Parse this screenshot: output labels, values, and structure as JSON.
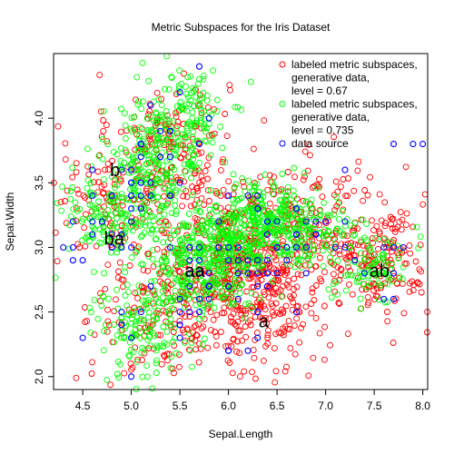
{
  "chart_data": {
    "type": "scatter",
    "title": "Metric Subspaces for the Iris Dataset",
    "xlabel": "Sepal.Length",
    "ylabel": "Sepal.Width",
    "xlim": [
      4.2,
      8.05
    ],
    "ylim": [
      1.9,
      4.5
    ],
    "xticks": [
      "4.5",
      "5.0",
      "5.5",
      "6.0",
      "6.5",
      "7.0",
      "7.5",
      "8.0"
    ],
    "yticks": [
      "2.0",
      "2.5",
      "3.0",
      "3.5",
      "4.0"
    ],
    "legend_position": "top-right",
    "legend": [
      {
        "lines": [
          "labeled metric subspaces,",
          "generative data,",
          "level = 0.67"
        ],
        "color": "#ff0000"
      },
      {
        "lines": [
          "labeled metric subspaces,",
          "generative data,",
          "level = 0.735"
        ],
        "color": "#00ff00"
      },
      {
        "lines": [
          "data source"
        ],
        "color": "#0000ff"
      }
    ],
    "cluster_labels": [
      {
        "text": "b",
        "x": 4.78,
        "y": 3.55
      },
      {
        "text": "ba",
        "x": 4.72,
        "y": 3.02
      },
      {
        "text": "aa",
        "x": 5.55,
        "y": 2.77
      },
      {
        "text": "a",
        "x": 6.31,
        "y": 2.38
      },
      {
        "text": "ab",
        "x": 7.45,
        "y": 2.77
      }
    ],
    "series": [
      {
        "name": "labeled metric subspaces, generative data, level = 0.67",
        "color": "#ff0000",
        "regions": [
          {
            "cx": 5.4,
            "cy": 3.75,
            "sx": 0.3,
            "sy": 0.3,
            "n": 180
          },
          {
            "cx": 6.0,
            "cy": 2.85,
            "sx": 0.45,
            "sy": 0.3,
            "n": 320
          },
          {
            "cx": 6.35,
            "cy": 2.6,
            "sx": 0.3,
            "sy": 0.3,
            "n": 180
          },
          {
            "cx": 6.9,
            "cy": 3.15,
            "sx": 0.5,
            "sy": 0.25,
            "n": 260
          },
          {
            "cx": 7.6,
            "cy": 2.8,
            "sx": 0.25,
            "sy": 0.2,
            "n": 120
          },
          {
            "cx": 5.3,
            "cy": 2.5,
            "sx": 0.35,
            "sy": 0.3,
            "n": 150
          },
          {
            "cx": 4.75,
            "cy": 3.4,
            "sx": 0.3,
            "sy": 0.25,
            "n": 90
          }
        ]
      },
      {
        "name": "labeled metric subspaces, generative data, level = 0.735",
        "color": "#00ff00",
        "regions": [
          {
            "cx": 5.2,
            "cy": 3.55,
            "sx": 0.25,
            "sy": 0.28,
            "n": 260
          },
          {
            "cx": 5.6,
            "cy": 4.0,
            "sx": 0.2,
            "sy": 0.2,
            "n": 120
          },
          {
            "cx": 4.7,
            "cy": 3.25,
            "sx": 0.25,
            "sy": 0.2,
            "n": 110
          },
          {
            "cx": 5.75,
            "cy": 2.85,
            "sx": 0.3,
            "sy": 0.2,
            "n": 300
          },
          {
            "cx": 6.6,
            "cy": 3.15,
            "sx": 0.35,
            "sy": 0.15,
            "n": 260
          },
          {
            "cx": 6.2,
            "cy": 3.2,
            "sx": 0.25,
            "sy": 0.15,
            "n": 160
          },
          {
            "cx": 7.5,
            "cy": 2.85,
            "sx": 0.2,
            "sy": 0.15,
            "n": 90
          },
          {
            "cx": 5.1,
            "cy": 2.4,
            "sx": 0.25,
            "sy": 0.22,
            "n": 140
          }
        ]
      },
      {
        "name": "data source",
        "color": "#0000ff",
        "points": [
          [
            5.1,
            3.5
          ],
          [
            4.9,
            3.0
          ],
          [
            4.7,
            3.2
          ],
          [
            4.6,
            3.1
          ],
          [
            5.0,
            3.6
          ],
          [
            5.4,
            3.9
          ],
          [
            4.6,
            3.4
          ],
          [
            5.0,
            3.4
          ],
          [
            4.4,
            2.9
          ],
          [
            4.9,
            3.1
          ],
          [
            5.4,
            3.7
          ],
          [
            4.8,
            3.4
          ],
          [
            4.8,
            3.0
          ],
          [
            4.3,
            3.0
          ],
          [
            5.8,
            4.0
          ],
          [
            5.7,
            4.4
          ],
          [
            5.4,
            3.9
          ],
          [
            5.1,
            3.5
          ],
          [
            5.7,
            3.8
          ],
          [
            5.1,
            3.8
          ],
          [
            5.4,
            3.4
          ],
          [
            5.1,
            3.7
          ],
          [
            4.6,
            3.6
          ],
          [
            5.1,
            3.3
          ],
          [
            4.8,
            3.4
          ],
          [
            5.0,
            3.0
          ],
          [
            5.0,
            3.4
          ],
          [
            5.2,
            3.5
          ],
          [
            5.2,
            3.4
          ],
          [
            4.7,
            3.2
          ],
          [
            4.8,
            3.1
          ],
          [
            5.4,
            3.4
          ],
          [
            5.2,
            4.1
          ],
          [
            5.5,
            4.2
          ],
          [
            4.9,
            3.1
          ],
          [
            5.0,
            3.2
          ],
          [
            5.5,
            3.5
          ],
          [
            4.9,
            3.6
          ],
          [
            4.4,
            3.0
          ],
          [
            5.1,
            3.4
          ],
          [
            5.0,
            3.5
          ],
          [
            4.5,
            2.3
          ],
          [
            4.4,
            3.2
          ],
          [
            5.0,
            3.5
          ],
          [
            5.1,
            3.8
          ],
          [
            4.8,
            3.0
          ],
          [
            5.1,
            3.8
          ],
          [
            4.6,
            3.2
          ],
          [
            5.3,
            3.7
          ],
          [
            5.0,
            3.3
          ],
          [
            7.0,
            3.2
          ],
          [
            6.4,
            3.2
          ],
          [
            6.9,
            3.1
          ],
          [
            5.5,
            2.3
          ],
          [
            6.5,
            2.8
          ],
          [
            5.7,
            2.8
          ],
          [
            6.3,
            3.3
          ],
          [
            4.9,
            2.4
          ],
          [
            6.6,
            2.9
          ],
          [
            5.2,
            2.7
          ],
          [
            5.0,
            2.0
          ],
          [
            5.9,
            3.0
          ],
          [
            6.0,
            2.2
          ],
          [
            6.1,
            2.9
          ],
          [
            5.6,
            2.9
          ],
          [
            6.7,
            3.1
          ],
          [
            5.6,
            3.0
          ],
          [
            5.8,
            2.7
          ],
          [
            6.2,
            2.2
          ],
          [
            5.6,
            2.5
          ],
          [
            5.9,
            3.2
          ],
          [
            6.1,
            2.8
          ],
          [
            6.3,
            2.5
          ],
          [
            6.1,
            2.8
          ],
          [
            6.4,
            2.9
          ],
          [
            6.6,
            3.0
          ],
          [
            6.8,
            2.8
          ],
          [
            6.7,
            3.0
          ],
          [
            6.0,
            2.9
          ],
          [
            5.7,
            2.6
          ],
          [
            5.5,
            2.4
          ],
          [
            5.5,
            2.4
          ],
          [
            5.8,
            2.7
          ],
          [
            6.0,
            2.7
          ],
          [
            5.4,
            3.0
          ],
          [
            6.0,
            3.4
          ],
          [
            6.7,
            3.1
          ],
          [
            6.3,
            2.3
          ],
          [
            5.6,
            3.0
          ],
          [
            5.5,
            2.5
          ],
          [
            5.5,
            2.6
          ],
          [
            6.1,
            3.0
          ],
          [
            5.8,
            2.6
          ],
          [
            5.0,
            2.3
          ],
          [
            5.6,
            2.7
          ],
          [
            5.7,
            3.0
          ],
          [
            5.7,
            2.9
          ],
          [
            6.2,
            2.9
          ],
          [
            5.1,
            2.5
          ],
          [
            5.7,
            2.8
          ],
          [
            6.3,
            3.3
          ],
          [
            5.8,
            2.7
          ],
          [
            7.1,
            3.0
          ],
          [
            6.3,
            2.9
          ],
          [
            6.5,
            3.0
          ],
          [
            7.6,
            3.0
          ],
          [
            4.9,
            2.5
          ],
          [
            7.3,
            2.9
          ],
          [
            6.7,
            2.5
          ],
          [
            7.2,
            3.6
          ],
          [
            6.5,
            3.2
          ],
          [
            6.4,
            2.7
          ],
          [
            6.8,
            3.0
          ],
          [
            5.7,
            2.5
          ],
          [
            5.8,
            2.8
          ],
          [
            6.4,
            3.2
          ],
          [
            6.5,
            3.0
          ],
          [
            7.7,
            3.8
          ],
          [
            7.7,
            2.6
          ],
          [
            6.0,
            2.2
          ],
          [
            6.9,
            3.2
          ],
          [
            5.6,
            2.8
          ],
          [
            7.7,
            2.8
          ],
          [
            6.3,
            2.7
          ],
          [
            6.7,
            3.3
          ],
          [
            7.2,
            3.2
          ],
          [
            6.2,
            2.8
          ],
          [
            6.1,
            3.0
          ],
          [
            6.4,
            2.8
          ],
          [
            7.2,
            3.0
          ],
          [
            7.4,
            2.8
          ],
          [
            7.9,
            3.8
          ],
          [
            6.4,
            2.8
          ],
          [
            6.3,
            2.8
          ],
          [
            6.1,
            2.6
          ],
          [
            7.7,
            3.0
          ],
          [
            6.3,
            3.4
          ],
          [
            6.4,
            3.1
          ],
          [
            6.0,
            3.0
          ],
          [
            6.9,
            3.1
          ],
          [
            6.7,
            3.1
          ],
          [
            6.9,
            3.1
          ],
          [
            5.8,
            2.7
          ],
          [
            6.8,
            3.2
          ],
          [
            6.7,
            3.3
          ],
          [
            6.7,
            3.0
          ],
          [
            6.3,
            2.5
          ],
          [
            6.5,
            3.0
          ],
          [
            6.2,
            3.4
          ],
          [
            5.9,
            3.0
          ],
          [
            7.6,
            2.6
          ],
          [
            4.5,
            2.9
          ],
          [
            5.3,
            3.9
          ],
          [
            7.8,
            3.0
          ],
          [
            8.0,
            3.8
          ]
        ]
      }
    ]
  }
}
